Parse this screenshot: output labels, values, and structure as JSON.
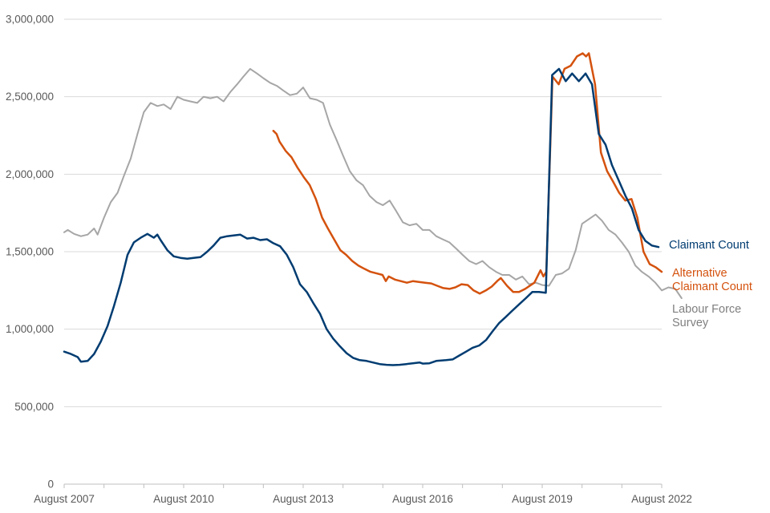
{
  "chart_data": {
    "type": "line",
    "title": "",
    "xlabel": "",
    "ylabel": "",
    "ylim": [
      0,
      3000000
    ],
    "y_ticks": [
      0,
      500000,
      1000000,
      1500000,
      2000000,
      2500000,
      3000000
    ],
    "y_tick_labels": [
      "0",
      "500,000",
      "1,000,000",
      "1,500,000",
      "2,000,000",
      "2,500,000",
      "3,000,000"
    ],
    "xlim": [
      2007.58,
      2022.58
    ],
    "x_tick_positions": [
      2007.58,
      2010.58,
      2013.58,
      2016.58,
      2019.58,
      2022.58
    ],
    "x_tick_labels": [
      "August 2007",
      "August 2010",
      "August 2013",
      "August 2016",
      "August 2019",
      "August 2022"
    ],
    "x_minor_ticks": [
      2008.58,
      2009.58,
      2011.58,
      2012.58,
      2014.58,
      2015.58,
      2017.58,
      2018.58,
      2020.58,
      2021.58
    ],
    "grid": true,
    "legend": "inline-right",
    "series": [
      {
        "name": "Claimant Count",
        "label_lines": [
          "Claimant Count"
        ],
        "color": "#003c71",
        "points": [
          [
            2007.58,
            855000
          ],
          [
            2007.75,
            840000
          ],
          [
            2007.92,
            820000
          ],
          [
            2008.0,
            790000
          ],
          [
            2008.17,
            795000
          ],
          [
            2008.33,
            840000
          ],
          [
            2008.5,
            920000
          ],
          [
            2008.67,
            1020000
          ],
          [
            2008.83,
            1150000
          ],
          [
            2009.0,
            1300000
          ],
          [
            2009.17,
            1480000
          ],
          [
            2009.33,
            1560000
          ],
          [
            2009.5,
            1590000
          ],
          [
            2009.67,
            1615000
          ],
          [
            2009.83,
            1590000
          ],
          [
            2009.92,
            1610000
          ],
          [
            2010.0,
            1575000
          ],
          [
            2010.17,
            1510000
          ],
          [
            2010.33,
            1470000
          ],
          [
            2010.5,
            1460000
          ],
          [
            2010.67,
            1455000
          ],
          [
            2010.83,
            1460000
          ],
          [
            2011.0,
            1465000
          ],
          [
            2011.17,
            1500000
          ],
          [
            2011.33,
            1540000
          ],
          [
            2011.5,
            1590000
          ],
          [
            2011.67,
            1600000
          ],
          [
            2011.83,
            1605000
          ],
          [
            2012.0,
            1610000
          ],
          [
            2012.17,
            1585000
          ],
          [
            2012.33,
            1590000
          ],
          [
            2012.5,
            1575000
          ],
          [
            2012.67,
            1580000
          ],
          [
            2012.83,
            1555000
          ],
          [
            2013.0,
            1535000
          ],
          [
            2013.17,
            1480000
          ],
          [
            2013.33,
            1400000
          ],
          [
            2013.5,
            1290000
          ],
          [
            2013.67,
            1240000
          ],
          [
            2013.83,
            1170000
          ],
          [
            2014.0,
            1100000
          ],
          [
            2014.17,
            1000000
          ],
          [
            2014.33,
            940000
          ],
          [
            2014.5,
            890000
          ],
          [
            2014.67,
            845000
          ],
          [
            2014.83,
            815000
          ],
          [
            2015.0,
            800000
          ],
          [
            2015.17,
            795000
          ],
          [
            2015.33,
            785000
          ],
          [
            2015.5,
            775000
          ],
          [
            2015.67,
            770000
          ],
          [
            2015.83,
            768000
          ],
          [
            2016.0,
            770000
          ],
          [
            2016.17,
            775000
          ],
          [
            2016.33,
            780000
          ],
          [
            2016.5,
            785000
          ],
          [
            2016.58,
            778000
          ],
          [
            2016.75,
            780000
          ],
          [
            2016.92,
            795000
          ],
          [
            2017.17,
            800000
          ],
          [
            2017.33,
            805000
          ],
          [
            2017.5,
            830000
          ],
          [
            2017.67,
            855000
          ],
          [
            2017.83,
            880000
          ],
          [
            2018.0,
            895000
          ],
          [
            2018.17,
            930000
          ],
          [
            2018.33,
            985000
          ],
          [
            2018.5,
            1040000
          ],
          [
            2018.67,
            1080000
          ],
          [
            2018.83,
            1120000
          ],
          [
            2019.0,
            1160000
          ],
          [
            2019.17,
            1200000
          ],
          [
            2019.33,
            1240000
          ],
          [
            2019.5,
            1240000
          ],
          [
            2019.67,
            1235000
          ],
          [
            2019.83,
            2640000
          ],
          [
            2020.0,
            2680000
          ],
          [
            2020.17,
            2600000
          ],
          [
            2020.33,
            2650000
          ],
          [
            2020.5,
            2600000
          ],
          [
            2020.67,
            2650000
          ],
          [
            2020.83,
            2580000
          ],
          [
            2021.0,
            2260000
          ],
          [
            2021.17,
            2190000
          ],
          [
            2021.33,
            2060000
          ],
          [
            2021.5,
            1960000
          ],
          [
            2021.67,
            1860000
          ],
          [
            2021.83,
            1780000
          ],
          [
            2022.0,
            1640000
          ],
          [
            2022.17,
            1570000
          ],
          [
            2022.33,
            1540000
          ],
          [
            2022.5,
            1530000
          ]
        ]
      },
      {
        "name": "Alternative Claimant Count",
        "label_lines": [
          "Alternative",
          "Claimant Count"
        ],
        "color": "#d4520e",
        "points": [
          [
            2012.83,
            2280000
          ],
          [
            2012.92,
            2260000
          ],
          [
            2013.0,
            2210000
          ],
          [
            2013.17,
            2150000
          ],
          [
            2013.33,
            2110000
          ],
          [
            2013.5,
            2040000
          ],
          [
            2013.67,
            1980000
          ],
          [
            2013.83,
            1930000
          ],
          [
            2014.0,
            1840000
          ],
          [
            2014.17,
            1720000
          ],
          [
            2014.33,
            1650000
          ],
          [
            2014.5,
            1580000
          ],
          [
            2014.67,
            1510000
          ],
          [
            2014.83,
            1480000
          ],
          [
            2015.0,
            1440000
          ],
          [
            2015.17,
            1410000
          ],
          [
            2015.33,
            1390000
          ],
          [
            2015.5,
            1370000
          ],
          [
            2015.67,
            1360000
          ],
          [
            2015.83,
            1350000
          ],
          [
            2015.92,
            1310000
          ],
          [
            2016.0,
            1340000
          ],
          [
            2016.17,
            1320000
          ],
          [
            2016.33,
            1310000
          ],
          [
            2016.5,
            1300000
          ],
          [
            2016.67,
            1310000
          ],
          [
            2016.83,
            1305000
          ],
          [
            2017.0,
            1300000
          ],
          [
            2017.17,
            1295000
          ],
          [
            2017.33,
            1280000
          ],
          [
            2017.5,
            1265000
          ],
          [
            2017.67,
            1260000
          ],
          [
            2017.83,
            1270000
          ],
          [
            2018.0,
            1290000
          ],
          [
            2018.17,
            1285000
          ],
          [
            2018.33,
            1250000
          ],
          [
            2018.5,
            1230000
          ],
          [
            2018.67,
            1250000
          ],
          [
            2018.83,
            1275000
          ],
          [
            2019.0,
            1315000
          ],
          [
            2019.08,
            1330000
          ],
          [
            2019.25,
            1280000
          ],
          [
            2019.42,
            1240000
          ],
          [
            2019.58,
            1240000
          ],
          [
            2019.75,
            1260000
          ],
          [
            2020.0,
            1300000
          ],
          [
            2020.17,
            1380000
          ],
          [
            2020.25,
            1340000
          ],
          [
            2020.33,
            1370000
          ],
          [
            2020.5,
            2630000
          ],
          [
            2020.67,
            2580000
          ],
          [
            2020.83,
            2680000
          ],
          [
            2021.0,
            2700000
          ],
          [
            2021.17,
            2760000
          ],
          [
            2021.33,
            2780000
          ],
          [
            2021.42,
            2760000
          ],
          [
            2021.5,
            2780000
          ],
          [
            2021.67,
            2580000
          ],
          [
            2021.83,
            2140000
          ],
          [
            2022.0,
            2020000
          ],
          [
            2022.17,
            1950000
          ],
          [
            2022.33,
            1880000
          ],
          [
            2022.5,
            1830000
          ],
          [
            2022.67,
            1840000
          ],
          [
            2022.83,
            1720000
          ],
          [
            2023.0,
            1500000
          ],
          [
            2023.17,
            1420000
          ],
          [
            2023.33,
            1400000
          ],
          [
            2023.5,
            1370000
          ]
        ]
      },
      {
        "name": "Labour Force Survey",
        "label_lines": [
          "Labour Force",
          "Survey"
        ],
        "color": "#a6a6a6",
        "points": [
          [
            2007.58,
            1625000
          ],
          [
            2007.67,
            1640000
          ],
          [
            2007.83,
            1615000
          ],
          [
            2008.0,
            1600000
          ],
          [
            2008.17,
            1610000
          ],
          [
            2008.33,
            1650000
          ],
          [
            2008.42,
            1610000
          ],
          [
            2008.58,
            1720000
          ],
          [
            2008.75,
            1820000
          ],
          [
            2008.92,
            1880000
          ],
          [
            2009.08,
            1990000
          ],
          [
            2009.25,
            2100000
          ],
          [
            2009.42,
            2260000
          ],
          [
            2009.58,
            2400000
          ],
          [
            2009.75,
            2460000
          ],
          [
            2009.92,
            2440000
          ],
          [
            2010.08,
            2450000
          ],
          [
            2010.25,
            2420000
          ],
          [
            2010.42,
            2500000
          ],
          [
            2010.58,
            2480000
          ],
          [
            2010.75,
            2470000
          ],
          [
            2010.92,
            2460000
          ],
          [
            2011.08,
            2500000
          ],
          [
            2011.25,
            2490000
          ],
          [
            2011.42,
            2500000
          ],
          [
            2011.58,
            2470000
          ],
          [
            2011.75,
            2530000
          ],
          [
            2011.92,
            2580000
          ],
          [
            2012.08,
            2630000
          ],
          [
            2012.25,
            2680000
          ],
          [
            2012.42,
            2650000
          ],
          [
            2012.58,
            2620000
          ],
          [
            2012.75,
            2590000
          ],
          [
            2012.92,
            2570000
          ],
          [
            2013.08,
            2540000
          ],
          [
            2013.25,
            2510000
          ],
          [
            2013.42,
            2520000
          ],
          [
            2013.58,
            2560000
          ],
          [
            2013.75,
            2490000
          ],
          [
            2013.92,
            2480000
          ],
          [
            2014.08,
            2460000
          ],
          [
            2014.25,
            2320000
          ],
          [
            2014.42,
            2220000
          ],
          [
            2014.58,
            2120000
          ],
          [
            2014.75,
            2020000
          ],
          [
            2014.92,
            1960000
          ],
          [
            2015.08,
            1930000
          ],
          [
            2015.25,
            1860000
          ],
          [
            2015.42,
            1820000
          ],
          [
            2015.58,
            1800000
          ],
          [
            2015.75,
            1830000
          ],
          [
            2015.92,
            1760000
          ],
          [
            2016.08,
            1690000
          ],
          [
            2016.25,
            1670000
          ],
          [
            2016.42,
            1680000
          ],
          [
            2016.58,
            1640000
          ],
          [
            2016.75,
            1640000
          ],
          [
            2016.92,
            1600000
          ],
          [
            2017.08,
            1580000
          ],
          [
            2017.25,
            1560000
          ],
          [
            2017.42,
            1520000
          ],
          [
            2017.58,
            1480000
          ],
          [
            2017.75,
            1440000
          ],
          [
            2017.92,
            1420000
          ],
          [
            2018.08,
            1440000
          ],
          [
            2018.25,
            1400000
          ],
          [
            2018.42,
            1370000
          ],
          [
            2018.58,
            1350000
          ],
          [
            2018.75,
            1350000
          ],
          [
            2018.92,
            1320000
          ],
          [
            2019.08,
            1340000
          ],
          [
            2019.25,
            1290000
          ],
          [
            2019.42,
            1300000
          ],
          [
            2019.58,
            1285000
          ],
          [
            2019.75,
            1280000
          ],
          [
            2019.92,
            1350000
          ],
          [
            2020.08,
            1360000
          ],
          [
            2020.25,
            1390000
          ],
          [
            2020.42,
            1510000
          ],
          [
            2020.58,
            1680000
          ],
          [
            2020.75,
            1710000
          ],
          [
            2020.92,
            1740000
          ],
          [
            2021.08,
            1700000
          ],
          [
            2021.25,
            1640000
          ],
          [
            2021.42,
            1610000
          ],
          [
            2021.58,
            1560000
          ],
          [
            2021.75,
            1500000
          ],
          [
            2021.92,
            1410000
          ],
          [
            2022.08,
            1370000
          ],
          [
            2022.25,
            1340000
          ],
          [
            2022.42,
            1300000
          ],
          [
            2022.58,
            1250000
          ],
          [
            2022.75,
            1270000
          ],
          [
            2022.92,
            1260000
          ],
          [
            2023.08,
            1200000
          ]
        ]
      }
    ]
  }
}
